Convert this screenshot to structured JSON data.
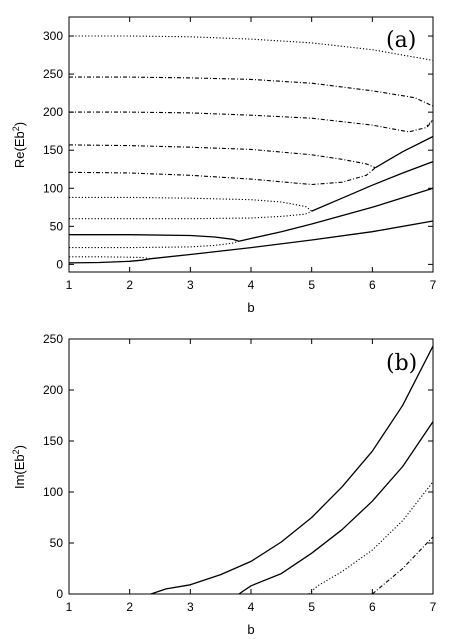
{
  "chart_data": [
    {
      "type": "line",
      "panel_label": "(a)",
      "xlabel": "b",
      "ylabel": "Re(Eb",
      "ylabel_sup": "2",
      "ylabel_close": ")",
      "xlim": [
        1,
        7
      ],
      "ylim": [
        -10,
        325
      ],
      "xticks": [
        1,
        2,
        3,
        4,
        5,
        6,
        7
      ],
      "yticks": [
        0,
        50,
        100,
        150,
        200,
        250,
        300
      ],
      "grid": false,
      "series": [
        {
          "style": "solid",
          "x": [
            1,
            1.5,
            2,
            2.2,
            2.35
          ],
          "y": [
            2,
            2.5,
            4,
            5.5,
            7.5
          ]
        },
        {
          "style": "dotted",
          "x": [
            1,
            1.5,
            2,
            2.2,
            2.35
          ],
          "y": [
            10,
            10,
            9.5,
            9,
            7.5
          ]
        },
        {
          "style": "solid",
          "x": [
            2.35,
            3,
            4,
            5,
            6,
            7
          ],
          "y": [
            7.5,
            13,
            22,
            32,
            43,
            57
          ]
        },
        {
          "style": "solid",
          "x": [
            1,
            2,
            3,
            3.4,
            3.7,
            3.8
          ],
          "y": [
            39,
            39,
            38,
            36,
            33,
            30.5
          ]
        },
        {
          "style": "dotted",
          "x": [
            1,
            2,
            3,
            3.4,
            3.7,
            3.8
          ],
          "y": [
            22,
            22,
            23,
            25,
            28,
            30.5
          ]
        },
        {
          "style": "solid",
          "x": [
            3.8,
            4.5,
            5,
            6,
            7
          ],
          "y": [
            30.5,
            43,
            53,
            75,
            100
          ]
        },
        {
          "style": "dotted",
          "x": [
            1,
            2,
            3,
            4,
            4.5,
            4.9,
            5.0
          ],
          "y": [
            88,
            88,
            87,
            85,
            82,
            76,
            70
          ]
        },
        {
          "style": "dotted",
          "x": [
            1,
            2,
            3,
            4,
            4.5,
            4.9,
            5.0
          ],
          "y": [
            60,
            60,
            60,
            61,
            63,
            66,
            70
          ]
        },
        {
          "style": "solid",
          "x": [
            5.0,
            5.5,
            6,
            6.5,
            7
          ],
          "y": [
            70,
            87,
            104,
            120,
            135
          ]
        },
        {
          "style": "dashdot",
          "x": [
            1,
            2,
            3,
            4,
            5,
            5.5,
            5.9,
            6.05
          ],
          "y": [
            157,
            156,
            154,
            151,
            144,
            138,
            132,
            127
          ]
        },
        {
          "style": "dashdot",
          "x": [
            1,
            2,
            3,
            4,
            5,
            5.5,
            5.9,
            6.05
          ],
          "y": [
            121,
            120,
            117,
            112,
            105,
            108,
            117,
            127
          ]
        },
        {
          "style": "solid",
          "x": [
            6.05,
            6.5,
            7
          ],
          "y": [
            127,
            148,
            168
          ]
        },
        {
          "style": "dashdot",
          "x": [
            1,
            2,
            3,
            4,
            5,
            6,
            6.6,
            6.9,
            7.0
          ],
          "y": [
            200,
            200,
            199,
            196,
            192,
            183,
            174,
            180,
            190
          ]
        },
        {
          "style": "dotted",
          "x": [
            6.9,
            7.0
          ],
          "y": [
            182,
            190
          ]
        },
        {
          "style": "dashdot",
          "x": [
            1,
            2,
            3,
            4,
            5,
            6,
            6.7,
            7.0
          ],
          "y": [
            246,
            246,
            245,
            243,
            238,
            228,
            219,
            208
          ]
        },
        {
          "style": "dotted",
          "x": [
            1,
            2,
            3,
            4,
            5,
            6,
            7
          ],
          "y": [
            300,
            300,
            299,
            296,
            291,
            282,
            268
          ]
        }
      ]
    },
    {
      "type": "line",
      "panel_label": "(b)",
      "xlabel": "b",
      "ylabel": "Im(Eb",
      "ylabel_sup": "2",
      "ylabel_close": ")",
      "xlim": [
        1,
        7
      ],
      "ylim": [
        0,
        250
      ],
      "xticks": [
        1,
        2,
        3,
        4,
        5,
        6,
        7
      ],
      "yticks": [
        0,
        50,
        100,
        150,
        200,
        250
      ],
      "grid": false,
      "series": [
        {
          "style": "solid",
          "x": [
            2.35,
            2.6,
            3,
            3.5,
            4,
            4.5,
            5,
            5.5,
            6,
            6.5,
            7
          ],
          "y": [
            0,
            5,
            9,
            19,
            32,
            51,
            75,
            105,
            140,
            185,
            243
          ]
        },
        {
          "style": "solid",
          "x": [
            3.8,
            4,
            4.5,
            5,
            5.5,
            6,
            6.5,
            7
          ],
          "y": [
            0,
            8,
            20,
            40,
            63,
            91,
            125,
            169
          ]
        },
        {
          "style": "dotted",
          "x": [
            4.95,
            5.1,
            5.5,
            6,
            6.5,
            7
          ],
          "y": [
            0,
            8,
            22,
            43,
            72,
            110
          ]
        },
        {
          "style": "dashdot",
          "x": [
            6.0,
            6.2,
            6.5,
            7
          ],
          "y": [
            0,
            10,
            25,
            56
          ]
        }
      ]
    }
  ]
}
